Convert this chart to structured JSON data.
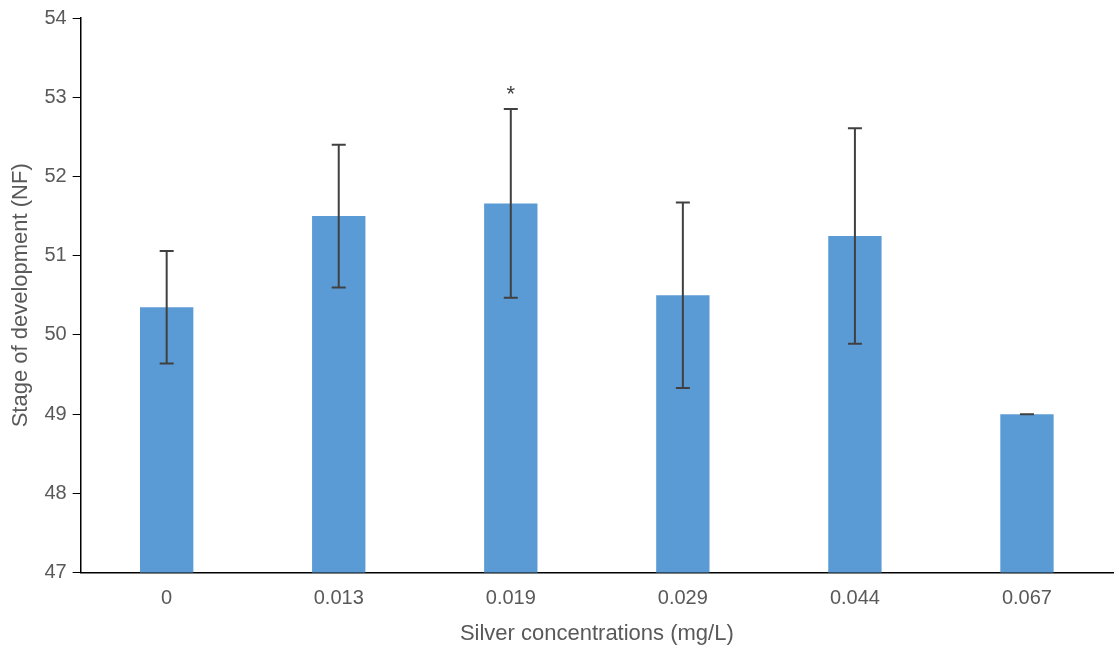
{
  "chart_data": {
    "type": "bar",
    "xlabel": "Silver concentrations (mg/L)",
    "ylabel": "Stage of development (NF)",
    "categories": [
      "0",
      "0.013",
      "0.019",
      "0.029",
      "0.044",
      "0.067"
    ],
    "values": [
      50.35,
      51.5,
      51.66,
      50.5,
      51.25,
      49
    ],
    "errors": [
      0.71,
      0.9,
      1.19,
      1.17,
      1.36,
      0
    ],
    "color": "#5b9bd5",
    "ylim": [
      47,
      54
    ],
    "yticks": [
      47,
      48,
      49,
      50,
      51,
      52,
      53,
      54
    ],
    "grid": false,
    "legend": false,
    "annotations": [
      {
        "text": "*",
        "x": "0.019",
        "y": 52.85
      }
    ]
  }
}
